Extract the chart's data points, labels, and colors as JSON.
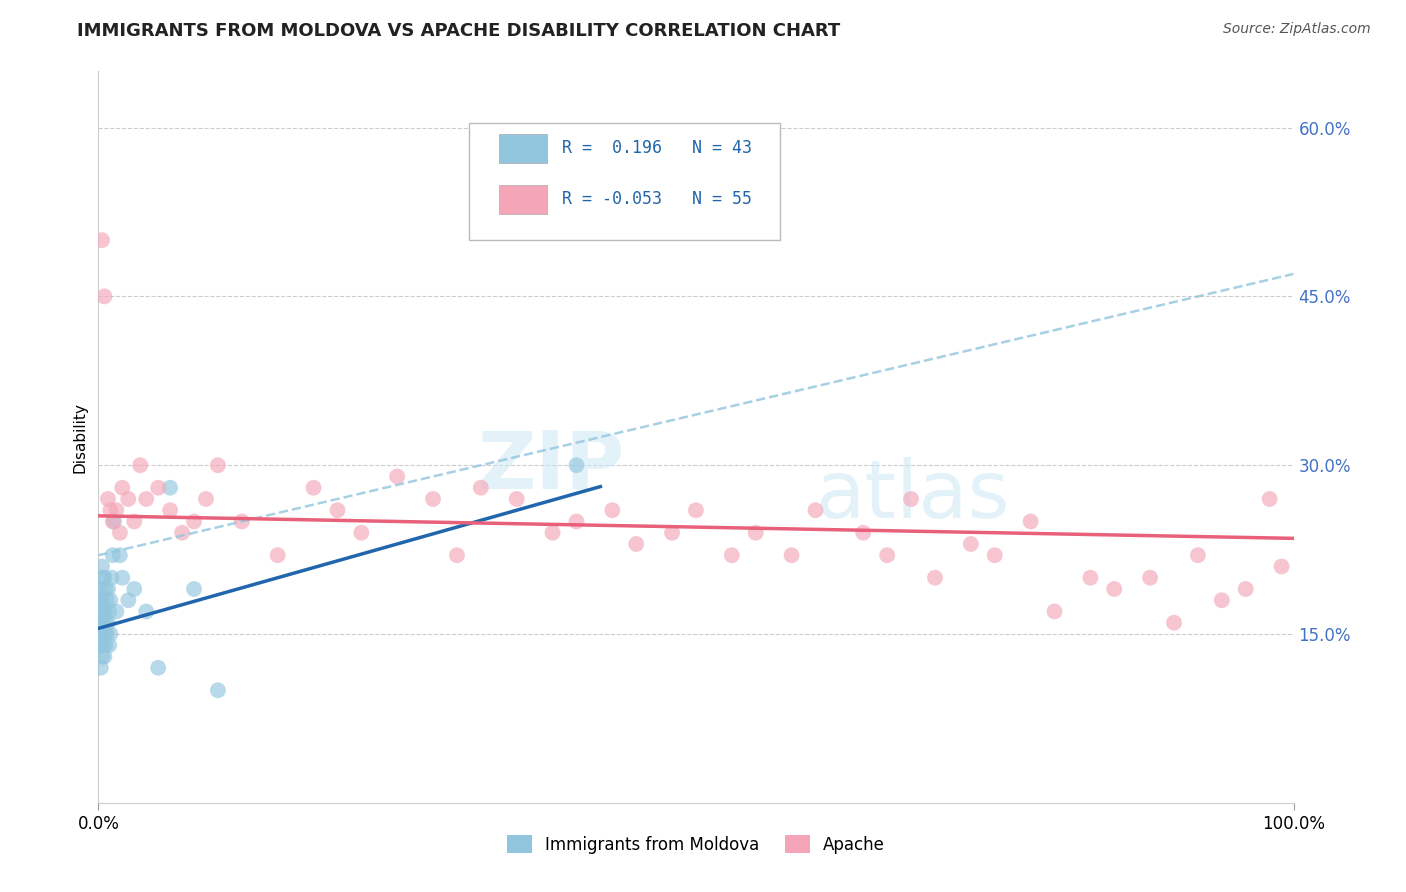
{
  "title": "IMMIGRANTS FROM MOLDOVA VS APACHE DISABILITY CORRELATION CHART",
  "source": "Source: ZipAtlas.com",
  "ylabel": "Disability",
  "xlim": [
    0.0,
    1.0
  ],
  "ylim": [
    0.0,
    0.65
  ],
  "x_ticks": [
    0.0,
    1.0
  ],
  "x_tick_labels": [
    "0.0%",
    "100.0%"
  ],
  "y_ticks": [
    0.15,
    0.3,
    0.45,
    0.6
  ],
  "y_tick_labels": [
    "15.0%",
    "30.0%",
    "45.0%",
    "60.0%"
  ],
  "r_blue": 0.196,
  "n_blue": 43,
  "r_pink": -0.053,
  "n_pink": 55,
  "blue_color": "#92c5de",
  "pink_color": "#f4a6b8",
  "trend_blue_solid_color": "#2166ac",
  "trend_blue_dash_color": "#92c5de",
  "trend_pink_color": "#e8607a",
  "legend_label_blue": "Immigrants from Moldova",
  "legend_label_pink": "Apache",
  "blue_x": [
    0.001,
    0.001,
    0.001,
    0.002,
    0.002,
    0.002,
    0.002,
    0.003,
    0.003,
    0.003,
    0.003,
    0.004,
    0.004,
    0.004,
    0.005,
    0.005,
    0.005,
    0.005,
    0.006,
    0.006,
    0.006,
    0.007,
    0.007,
    0.008,
    0.008,
    0.009,
    0.009,
    0.01,
    0.01,
    0.011,
    0.012,
    0.013,
    0.015,
    0.018,
    0.02,
    0.025,
    0.03,
    0.04,
    0.05,
    0.06,
    0.08,
    0.1,
    0.4
  ],
  "blue_y": [
    0.14,
    0.16,
    0.18,
    0.12,
    0.15,
    0.17,
    0.19,
    0.13,
    0.16,
    0.18,
    0.21,
    0.14,
    0.17,
    0.2,
    0.13,
    0.15,
    0.17,
    0.2,
    0.14,
    0.16,
    0.19,
    0.15,
    0.18,
    0.16,
    0.19,
    0.14,
    0.17,
    0.15,
    0.18,
    0.2,
    0.22,
    0.25,
    0.17,
    0.22,
    0.2,
    0.18,
    0.19,
    0.17,
    0.12,
    0.28,
    0.19,
    0.1,
    0.3
  ],
  "pink_x": [
    0.003,
    0.005,
    0.008,
    0.01,
    0.012,
    0.015,
    0.018,
    0.02,
    0.025,
    0.03,
    0.035,
    0.04,
    0.05,
    0.06,
    0.07,
    0.08,
    0.09,
    0.1,
    0.12,
    0.15,
    0.18,
    0.2,
    0.22,
    0.25,
    0.28,
    0.3,
    0.32,
    0.35,
    0.38,
    0.4,
    0.43,
    0.45,
    0.48,
    0.5,
    0.53,
    0.55,
    0.58,
    0.6,
    0.64,
    0.66,
    0.68,
    0.7,
    0.73,
    0.75,
    0.78,
    0.8,
    0.83,
    0.85,
    0.88,
    0.9,
    0.92,
    0.94,
    0.96,
    0.98,
    0.99
  ],
  "pink_y": [
    0.5,
    0.45,
    0.27,
    0.26,
    0.25,
    0.26,
    0.24,
    0.28,
    0.27,
    0.25,
    0.3,
    0.27,
    0.28,
    0.26,
    0.24,
    0.25,
    0.27,
    0.3,
    0.25,
    0.22,
    0.28,
    0.26,
    0.24,
    0.29,
    0.27,
    0.22,
    0.28,
    0.27,
    0.24,
    0.25,
    0.26,
    0.23,
    0.24,
    0.26,
    0.22,
    0.24,
    0.22,
    0.26,
    0.24,
    0.22,
    0.27,
    0.2,
    0.23,
    0.22,
    0.25,
    0.17,
    0.2,
    0.19,
    0.2,
    0.16,
    0.22,
    0.18,
    0.19,
    0.27,
    0.21
  ]
}
